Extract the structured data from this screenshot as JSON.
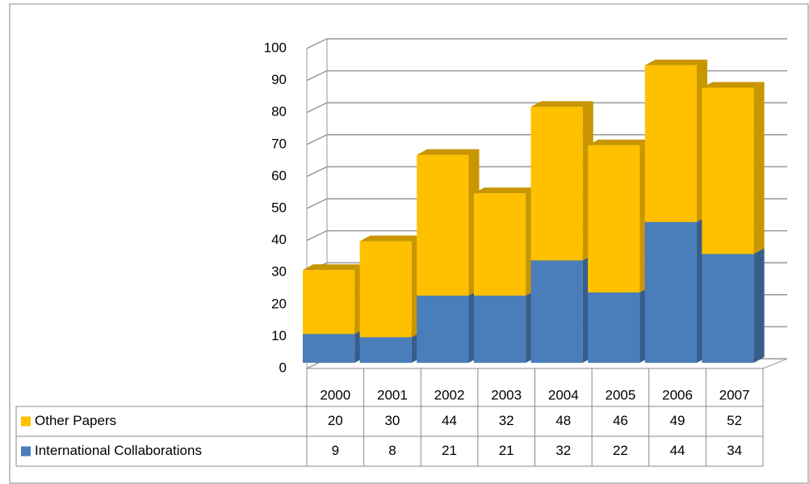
{
  "chart_data": {
    "type": "bar3d_stacked_table",
    "categories": [
      "2000",
      "2001",
      "2002",
      "2003",
      "2004",
      "2005",
      "2006",
      "2007"
    ],
    "series": [
      {
        "name": "Other Papers",
        "color": "#FFC000",
        "side_color": "#C79600",
        "values": [
          20,
          30,
          44,
          32,
          48,
          46,
          49,
          52
        ]
      },
      {
        "name": "International Collaborations",
        "color": "#4A7EBB",
        "side_color": "#385D8A",
        "values": [
          9,
          8,
          21,
          21,
          32,
          22,
          44,
          34
        ]
      }
    ],
    "ylim": [
      0,
      100
    ],
    "yticks": [
      0,
      10,
      20,
      30,
      40,
      50,
      60,
      70,
      80,
      90,
      100
    ],
    "grid": true
  }
}
